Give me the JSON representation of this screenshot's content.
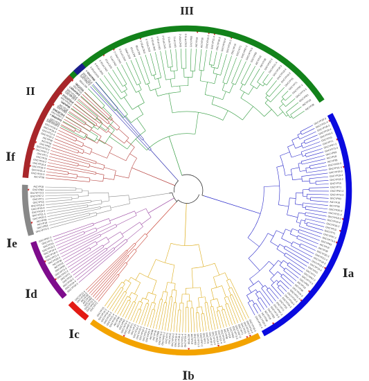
{
  "groups": [
    {
      "id": "III",
      "label": "III",
      "color": "#12821a",
      "branch": "#2e9a3c",
      "a0": -63.5,
      "a1": 56.5,
      "leaves": 58
    },
    {
      "id": "Ia",
      "label": "Ⅰa",
      "color": "#0a0adf",
      "branch": "#2323c9",
      "a0": 62,
      "a1": 152,
      "leaves": 62
    },
    {
      "id": "Ib",
      "label": "Ⅰb",
      "color": "#f3a300",
      "branch": "#dcaa14",
      "a0": 153.5,
      "a1": 216,
      "leaves": 52
    },
    {
      "id": "Ic",
      "label": "Ⅰc",
      "color": "#e31b14",
      "branch": "#c94336",
      "a0": 218,
      "a1": 226,
      "leaves": 8
    },
    {
      "id": "Id",
      "label": "Ⅰd",
      "color": "#7e0c8c",
      "branch": "#9c4aa3",
      "a0": 229,
      "a1": 251.5,
      "leaves": 18
    },
    {
      "id": "Ie",
      "label": "Ⅰe",
      "color": "#888888",
      "branch": "#8a8a8a",
      "a0": 254,
      "a1": 272,
      "leaves": 15
    },
    {
      "id": "If",
      "label": "Ⅰf",
      "color": "#a8262a",
      "branch": "#b33a36",
      "a0": 274.5,
      "a1": 314.5,
      "leaves": 32
    },
    {
      "id": "II",
      "label": "II",
      "color": "#1b1d8c",
      "branch": "#2a2cb0",
      "a0": 316.5,
      "a1": 320.5,
      "leaves": 3
    }
  ],
  "leaf_label_examples": [
    "GhCYP18-3",
    "GhCYP19-4",
    "GhCYP16-2",
    "GhCYP15",
    "GhCYP71",
    "GhCYP97-2",
    "GhCYP73-3",
    "GhCYP83",
    "AtCYP18",
    "AtCYP38",
    "GhCYP20-3",
    "GhCYP21-4"
  ]
}
